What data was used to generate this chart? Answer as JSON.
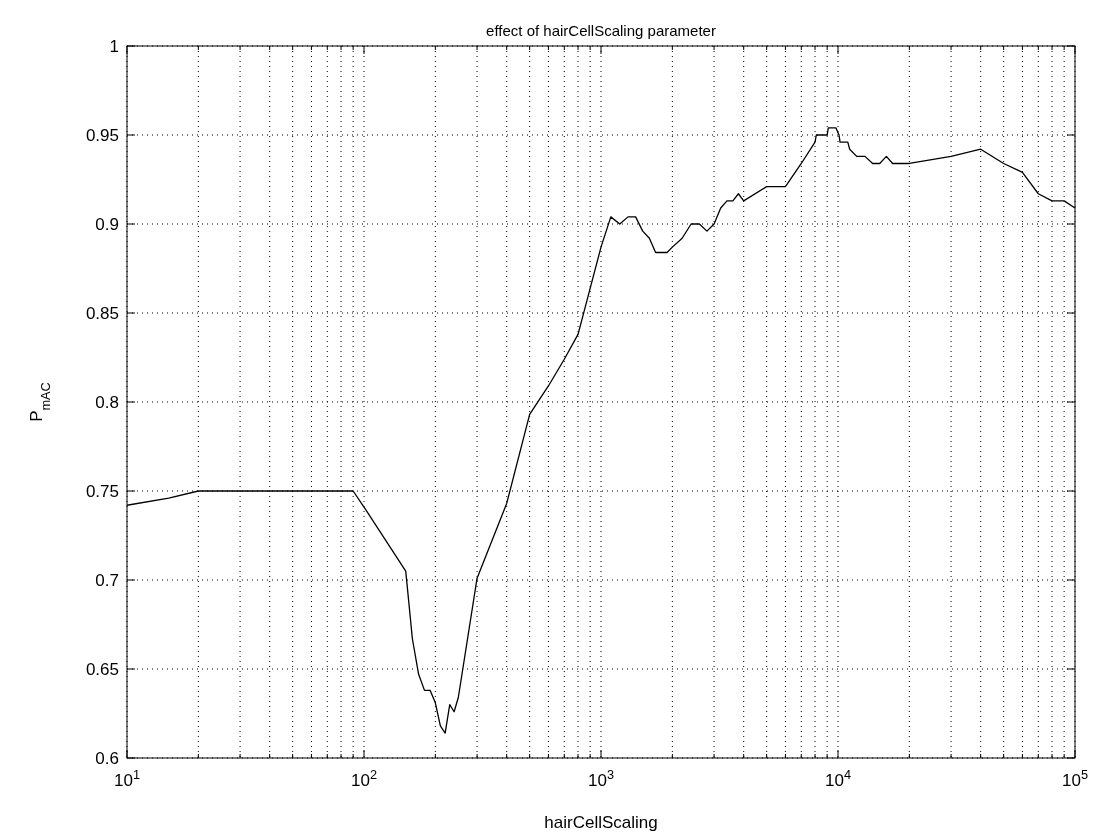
{
  "chart_data": {
    "type": "line",
    "title": "effect of hairCellScaling parameter",
    "xlabel": "hairCellScaling",
    "ylabel": "P$_{mAC}$",
    "log": "x",
    "grid": true,
    "marker": "none",
    "line_style": "solid",
    "xlim": [
      10,
      100000
    ],
    "ylim": [
      0.6,
      1
    ],
    "xticks": [
      {
        "value": 10,
        "label": "10$^{1}$"
      },
      {
        "value": 20,
        "label": null
      },
      {
        "value": 30,
        "label": null
      },
      {
        "value": 40,
        "label": null
      },
      {
        "value": 50,
        "label": null
      },
      {
        "value": 60,
        "label": null
      },
      {
        "value": 70,
        "label": null
      },
      {
        "value": 80,
        "label": null
      },
      {
        "value": 90,
        "label": null
      },
      {
        "value": 100,
        "label": "10$^{2}$"
      },
      {
        "value": 200,
        "label": null
      },
      {
        "value": 300,
        "label": null
      },
      {
        "value": 400,
        "label": null
      },
      {
        "value": 500,
        "label": null
      },
      {
        "value": 600,
        "label": null
      },
      {
        "value": 700,
        "label": null
      },
      {
        "value": 800,
        "label": null
      },
      {
        "value": 900,
        "label": null
      },
      {
        "value": 1000,
        "label": "10$^{3}$"
      },
      {
        "value": 2000,
        "label": null
      },
      {
        "value": 3000,
        "label": null
      },
      {
        "value": 4000,
        "label": null
      },
      {
        "value": 5000,
        "label": null
      },
      {
        "value": 6000,
        "label": null
      },
      {
        "value": 7000,
        "label": null
      },
      {
        "value": 8000,
        "label": null
      },
      {
        "value": 9000,
        "label": null
      },
      {
        "value": 10000,
        "label": "10$^{4}$"
      },
      {
        "value": 20000,
        "label": null
      },
      {
        "value": 30000,
        "label": null
      },
      {
        "value": 40000,
        "label": null
      },
      {
        "value": 50000,
        "label": null
      },
      {
        "value": 60000,
        "label": null
      },
      {
        "value": 70000,
        "label": null
      },
      {
        "value": 80000,
        "label": null
      },
      {
        "value": 90000,
        "label": null
      },
      {
        "value": 100000,
        "label": "10$^{5}$"
      }
    ],
    "yticks": [
      0.6,
      0.65,
      0.7,
      0.75,
      0.8,
      0.85,
      0.9,
      0.95,
      1
    ],
    "series": [
      {
        "color": "#000000",
        "x": [
          10,
          15,
          20,
          90,
          100,
          150,
          160,
          170,
          180,
          190,
          200,
          210,
          220,
          230,
          240,
          250,
          300,
          400,
          500,
          600,
          700,
          800,
          1000,
          1100,
          1200,
          1300,
          1400,
          1500,
          1600,
          1700,
          1900,
          2000,
          2200,
          2400,
          2600,
          2800,
          3000,
          3200,
          3400,
          3600,
          3800,
          4000,
          5000,
          6000,
          7000,
          8000,
          8100,
          9000,
          9100,
          9800,
          10100,
          10200,
          11000,
          11200,
          12000,
          13000,
          14000,
          15000,
          16000,
          17000,
          20000,
          30000,
          40000,
          50000,
          60000,
          70000,
          80000,
          90000,
          100000
        ],
        "values": [
          0.742,
          0.746,
          0.75,
          0.75,
          0.741,
          0.705,
          0.667,
          0.647,
          0.638,
          0.638,
          0.631,
          0.618,
          0.614,
          0.63,
          0.626,
          0.634,
          0.701,
          0.743,
          0.793,
          0.809,
          0.824,
          0.838,
          0.887,
          0.904,
          0.9,
          0.904,
          0.904,
          0.896,
          0.892,
          0.884,
          0.884,
          0.887,
          0.892,
          0.9,
          0.9,
          0.896,
          0.9,
          0.909,
          0.913,
          0.913,
          0.917,
          0.913,
          0.921,
          0.921,
          0.934,
          0.946,
          0.95,
          0.95,
          0.954,
          0.954,
          0.95,
          0.946,
          0.946,
          0.942,
          0.938,
          0.938,
          0.934,
          0.934,
          0.938,
          0.934,
          0.934,
          0.938,
          0.942,
          0.934,
          0.929,
          0.917,
          0.913,
          0.913,
          0.909
        ]
      }
    ]
  }
}
